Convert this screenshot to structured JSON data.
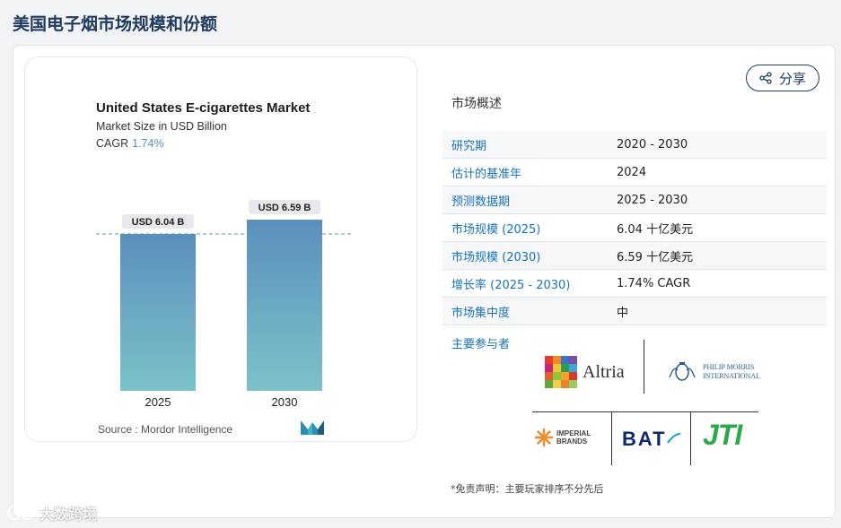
{
  "page": {
    "title": "美国电子烟市场规模和份额"
  },
  "chart_data": {
    "type": "bar",
    "title": "United States E-cigarettes Market",
    "subtitle": "Market Size in USD Billion",
    "cagr_label": "CAGR",
    "cagr_value": "1.74%",
    "categories": [
      "2025",
      "2030"
    ],
    "values": [
      6.04,
      6.59
    ],
    "data_labels": [
      "USD 6.04 B",
      "USD 6.59 B"
    ],
    "ylim": [
      0,
      7.8
    ],
    "colors": {
      "bar_top": "#5b8fbc",
      "bar_bottom": "#7cc2c9",
      "label_bg": "#e6e8ec",
      "dashed": "#5a9aa8"
    }
  },
  "source": {
    "label": "Source :",
    "value": "Mordor Intelligence"
  },
  "share": {
    "label": "分享",
    "icon": "share-icon"
  },
  "overview": {
    "title": "市场概述",
    "rows": [
      {
        "key": "研究期",
        "value": "2020 - 2030"
      },
      {
        "key": "估计的基准年",
        "value": "2024"
      },
      {
        "key": "预测数据期",
        "value": "2025 - 2030"
      },
      {
        "key": "市场规模 (2025)",
        "value": "6.04 十亿美元"
      },
      {
        "key": "市场规模 (2030)",
        "value": "6.59 十亿美元"
      },
      {
        "key": "增长率 (2025 - 2030)",
        "value": "1.74% CAGR"
      },
      {
        "key": "市场集中度",
        "value": "中"
      }
    ]
  },
  "players": {
    "title": "主要参与者",
    "logos": {
      "altria": "Altria",
      "pm_line1": "PHILIP MORRIS",
      "pm_line2": "INTERNATIONAL",
      "imperial_line1": "IMPERIAL",
      "imperial_line2": "BRANDS",
      "bat": "BAT",
      "jti": "JTI"
    }
  },
  "disclaimer": "*免责声明：主要玩家排序不分先后",
  "watermark": "大数跨境"
}
